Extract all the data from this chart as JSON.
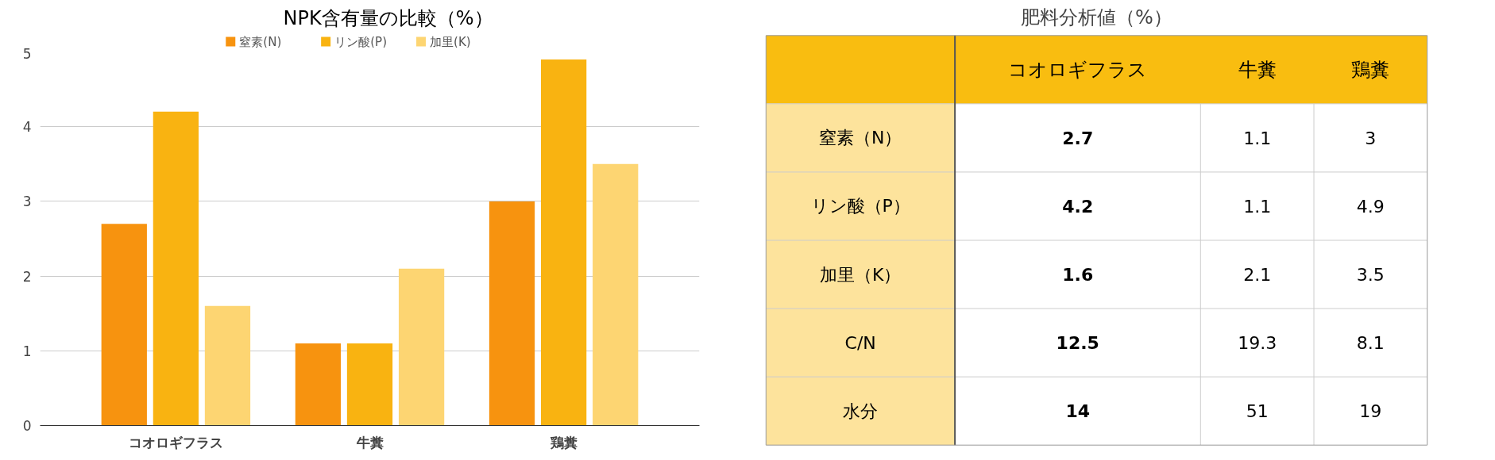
{
  "chart_data": [
    {
      "type": "bar",
      "title": "NPK含有量の比較（%）",
      "categories": [
        "コオロギフラス",
        "牛糞",
        "鶏糞"
      ],
      "series": [
        {
          "name": "窒素(N)",
          "color": "#f7930f",
          "values": [
            2.7,
            1.1,
            3
          ]
        },
        {
          "name": "リン酸(P)",
          "color": "#f9b311",
          "values": [
            4.2,
            1.1,
            4.9
          ]
        },
        {
          "name": "加里(K)",
          "color": "#fdd572",
          "values": [
            1.6,
            2.1,
            3.5
          ]
        }
      ],
      "ylim": [
        0,
        5
      ],
      "yticks": [
        0,
        1,
        2,
        3,
        4,
        5
      ],
      "grid": "y",
      "legend": "top"
    },
    {
      "type": "heatmap",
      "title": "肥料分析値（%）",
      "categories": [
        "コオロギフラス",
        "牛糞",
        "鶏糞"
      ],
      "y_categories": [
        "窒素（N）",
        "リン酸（P）",
        "加里（K）",
        "C/N",
        "水分"
      ],
      "cells": [
        [
          2.7,
          1.1,
          3
        ],
        [
          4.2,
          1.1,
          4.9
        ],
        [
          1.6,
          2.1,
          3.5
        ],
        [
          12.5,
          19.3,
          8.1
        ],
        [
          14,
          51,
          19
        ]
      ],
      "data_labels": true
    }
  ]
}
